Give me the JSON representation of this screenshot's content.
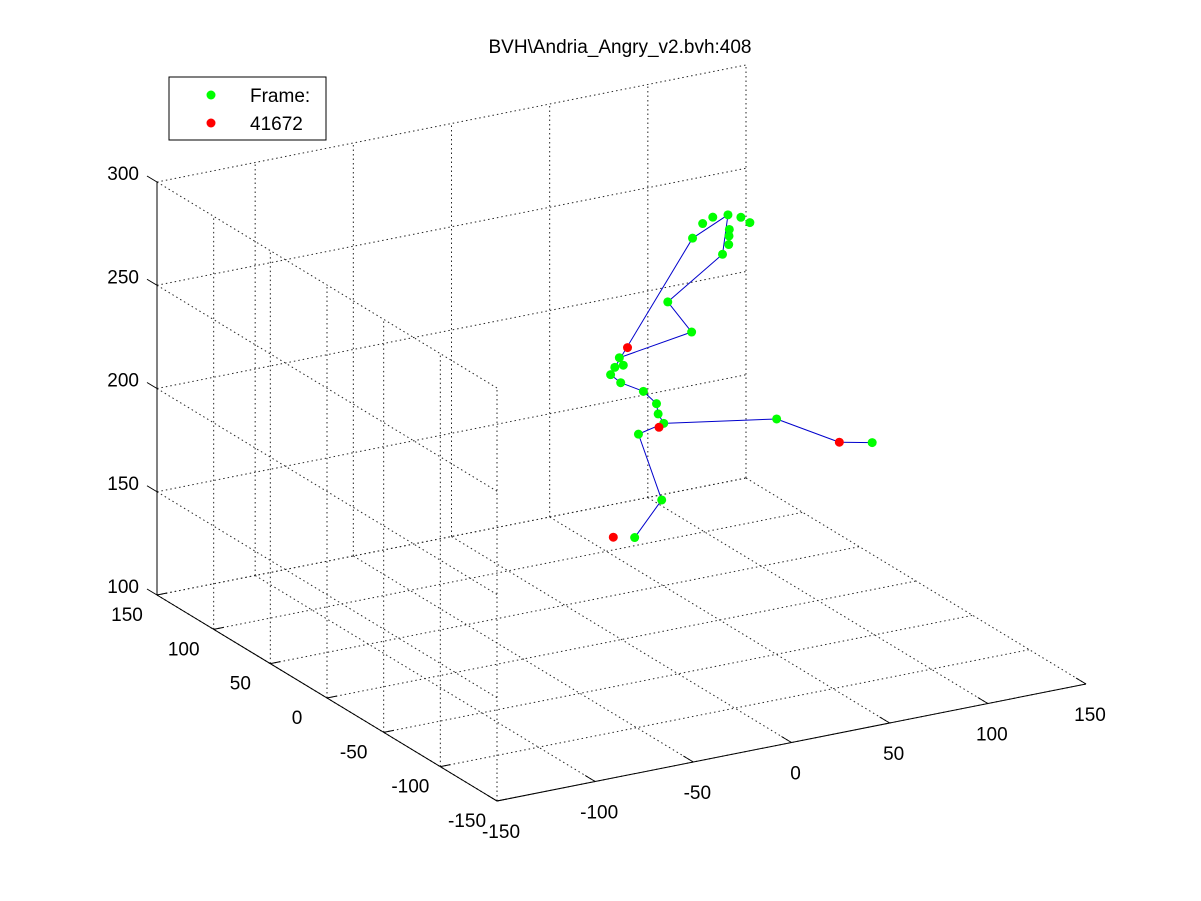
{
  "chart_data": {
    "type": "scatter",
    "projection": "3d",
    "title": "BVH\\Andria_Angry_v2.bvh:408",
    "grid": true,
    "legend_placement": "top-left",
    "legend": [
      "Frame:",
      "41672"
    ],
    "series": [
      {
        "name": "Frame:",
        "color": "#00ff00",
        "marker": "dot",
        "points": [
          [
            60,
            10,
            291
          ],
          [
            54,
            13,
            290
          ],
          [
            66,
            9,
            289
          ],
          [
            50,
            15,
            287
          ],
          [
            70,
            8,
            286
          ],
          [
            46,
            17,
            280
          ],
          [
            63,
            14,
            282
          ],
          [
            64,
            16,
            278
          ],
          [
            65,
            18,
            273
          ],
          [
            63,
            20,
            268
          ],
          [
            38,
            25,
            248
          ],
          [
            49,
            23,
            232
          ],
          [
            22,
            40,
            219
          ],
          [
            22,
            44,
            213
          ],
          [
            21,
            46,
            209
          ],
          [
            24,
            40,
            215
          ],
          [
            25,
            44,
            205
          ],
          [
            40,
            50,
            196
          ],
          [
            49,
            54,
            187
          ],
          [
            51,
            56,
            181
          ],
          [
            55,
            58,
            175
          ],
          [
            45,
            63,
            170
          ],
          [
            58,
            65,
            135
          ],
          [
            50,
            75,
            115
          ],
          [
            105,
            45,
            172
          ],
          [
            145,
            30,
            158
          ]
        ]
      },
      {
        "name": "41672",
        "color": "#ff0000",
        "marker": "dot",
        "points": [
          [
            25,
            38,
            224
          ],
          [
            52,
            57,
            174
          ],
          [
            130,
            33,
            160
          ],
          [
            42,
            80,
            115
          ]
        ]
      }
    ],
    "xlabel": "",
    "ylabel": "",
    "zlabel": "",
    "xlim": [
      -150,
      150
    ],
    "ylim": [
      -150,
      150
    ],
    "zlim": [
      100,
      300
    ],
    "xticks": [
      -150,
      -100,
      -50,
      0,
      50,
      100,
      150
    ],
    "yticks": [
      -150,
      -100,
      -50,
      0,
      50,
      100,
      150
    ],
    "zticks": [
      100,
      150,
      200,
      250,
      300
    ]
  },
  "colors": {
    "bone": "#0000cc",
    "frame_marker": "#00ff00",
    "highlight_marker": "#ff0000"
  }
}
